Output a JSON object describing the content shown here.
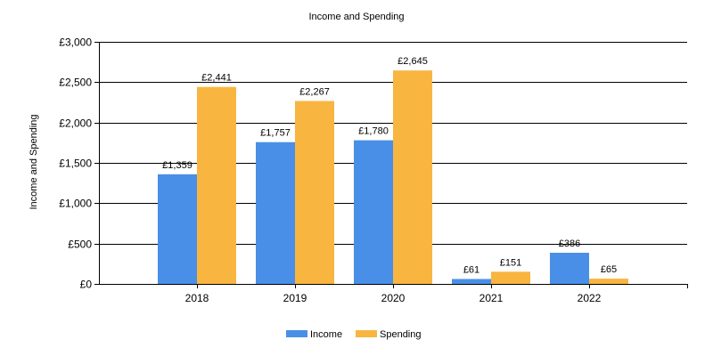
{
  "chart_data": {
    "type": "bar",
    "title": "Income and Spending",
    "xlabel": "",
    "ylabel": "Income and Spending",
    "categories": [
      "2018",
      "2019",
      "2020",
      "2021",
      "2022"
    ],
    "series": [
      {
        "name": "Income",
        "color": "#4a8fe7",
        "values": [
          1359,
          1757,
          1780,
          61,
          386
        ],
        "labels": [
          "£1,359",
          "£1,757",
          "£1,780",
          "£61",
          "£386"
        ]
      },
      {
        "name": "Spending",
        "color": "#f8b540",
        "values": [
          2441,
          2267,
          2645,
          151,
          65
        ],
        "labels": [
          "£2,441",
          "£2,267",
          "£2,645",
          "£151",
          "£65"
        ]
      }
    ],
    "ylim": [
      0,
      3000
    ],
    "yticks": [
      0,
      500,
      1000,
      1500,
      2000,
      2500,
      3000
    ],
    "ytick_labels": [
      "£0",
      "£500",
      "£1,000",
      "£1,500",
      "£2,000",
      "£2,500",
      "£3,000"
    ],
    "grid": true,
    "legend_position": "bottom-center"
  }
}
